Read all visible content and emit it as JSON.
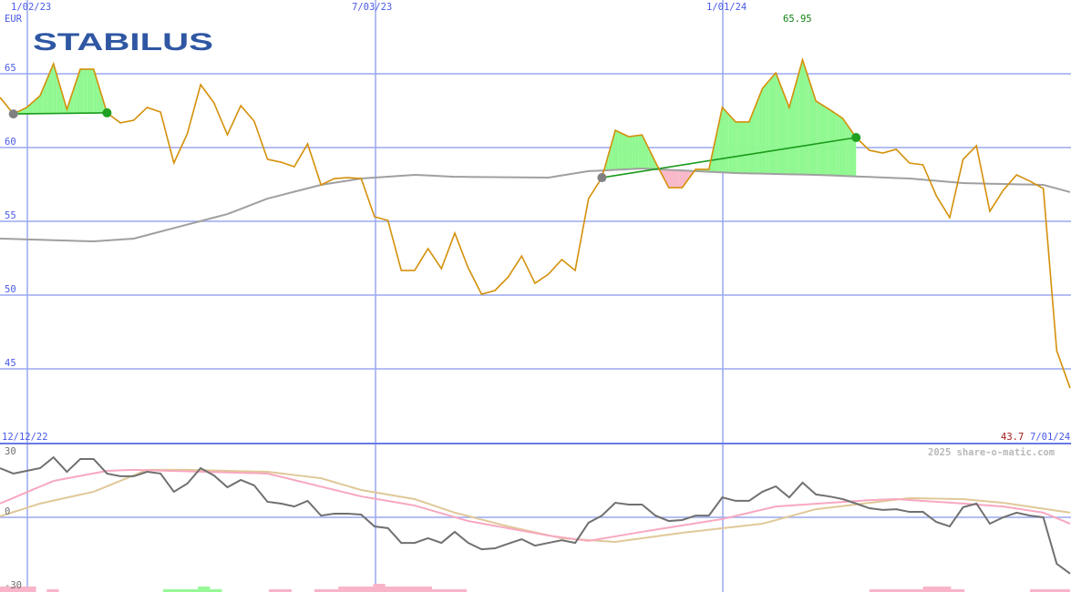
{
  "chart_data": [
    {
      "type": "line",
      "logo_text": "STABILUS",
      "unit_label": "EUR",
      "x_tick_labels": [
        "1/02/23",
        "7/03/23",
        "1/01/24"
      ],
      "y_tick_labels": [
        "65",
        "60",
        "55",
        "50",
        "45"
      ],
      "y_ticks": [
        65,
        60,
        55,
        50,
        45
      ],
      "ylim": [
        42.5,
        70
      ],
      "frequency": "weekly",
      "x_range": [
        "2022-12-19",
        "2024-07-01"
      ],
      "grid": true,
      "max_label": "65.95",
      "last_label": "43.7",
      "start_date_label": "12/12/22",
      "end_date_label": "7/01/24",
      "colors": {
        "price": "#d4900a",
        "moving_average": "#a0a0a0",
        "gain_fill": "#90f890",
        "loss_fill": "#f8b8c8",
        "trend_line": "#1a9a1a",
        "grid": "#9aa8f0",
        "label": "#4a5ae8",
        "max_label": "#108010",
        "last_label": "#a01818"
      },
      "price": [
        63.4,
        62.28,
        62.72,
        63.52,
        65.68,
        62.59,
        65.31,
        65.31,
        62.35,
        61.67,
        61.85,
        62.72,
        62.41,
        58.95,
        60.93,
        64.26,
        63.02,
        60.86,
        62.84,
        61.79,
        59.2,
        59.01,
        58.7,
        60.25,
        57.47,
        57.9,
        57.96,
        57.9,
        55.31,
        55.06,
        51.67,
        51.67,
        53.15,
        51.79,
        54.2,
        51.85,
        50.06,
        50.31,
        51.23,
        52.65,
        50.8,
        51.42,
        52.41,
        51.67,
        56.54,
        57.96,
        61.17,
        60.74,
        60.86,
        59.01,
        57.28,
        57.28,
        58.52,
        58.52,
        62.72,
        61.73,
        61.73,
        64.01,
        65.06,
        62.72,
        65.95,
        63.15,
        62.59,
        61.98,
        60.68,
        59.81,
        59.63,
        59.88,
        58.95,
        58.83,
        56.73,
        55.25,
        59.2,
        60.12,
        55.68,
        57.1,
        58.15,
        57.72,
        57.22,
        46.23,
        43.7
      ],
      "moving_average": [
        [
          0,
          53.83
        ],
        [
          7,
          53.64
        ],
        [
          10,
          53.83
        ],
        [
          17,
          55.49
        ],
        [
          20,
          56.54
        ],
        [
          24,
          57.47
        ],
        [
          27,
          57.9
        ],
        [
          31,
          58.15
        ],
        [
          34,
          58.02
        ],
        [
          41,
          57.96
        ],
        [
          44,
          58.4
        ],
        [
          48,
          58.58
        ],
        [
          55,
          58.27
        ],
        [
          61,
          58.15
        ],
        [
          68,
          57.9
        ],
        [
          72,
          57.59
        ],
        [
          78,
          57.47
        ],
        [
          80,
          56.98
        ]
      ],
      "trend_segments": [
        {
          "from_week": 1,
          "to_week": 8,
          "baseline": "trend"
        },
        {
          "from_week": 45,
          "to_week": 64,
          "baseline": "moving_average"
        }
      ]
    },
    {
      "type": "line",
      "y_tick_labels": [
        "30",
        "0",
        "-30"
      ],
      "ylim": [
        -30,
        30
      ],
      "watermark": "2025 share-o-matic.com",
      "colors": {
        "oscillator": "#707070",
        "fast_average": "#f8a8c0",
        "slow_average": "#e0c898"
      },
      "oscillator": [
        20.0,
        17.8,
        18.9,
        20.0,
        24.4,
        18.5,
        23.7,
        23.7,
        17.8,
        16.7,
        16.7,
        18.5,
        17.8,
        10.4,
        13.7,
        20.0,
        17.0,
        12.2,
        15.2,
        13.0,
        6.3,
        5.6,
        4.4,
        6.7,
        0.7,
        1.5,
        1.5,
        1.1,
        -3.7,
        -4.4,
        -10.4,
        -10.4,
        -8.5,
        -10.4,
        -5.9,
        -10.4,
        -13.0,
        -12.6,
        -10.7,
        -8.9,
        -11.5,
        -10.4,
        -9.3,
        -10.4,
        -2.2,
        0.7,
        5.9,
        5.2,
        5.2,
        0.7,
        -1.5,
        -1.1,
        0.7,
        0.7,
        8.1,
        6.7,
        6.7,
        10.4,
        12.6,
        8.1,
        14.1,
        9.3,
        8.5,
        7.4,
        5.6,
        3.7,
        3.0,
        3.3,
        2.2,
        2.2,
        -1.9,
        -3.7,
        4.1,
        5.6,
        -2.6,
        0.0,
        1.9,
        0.7,
        0.0,
        -18.9,
        -22.9
      ],
      "fast_average": [
        [
          0,
          5.6
        ],
        [
          4,
          14.8
        ],
        [
          8,
          18.9
        ],
        [
          10,
          19.3
        ],
        [
          20,
          17.8
        ],
        [
          27,
          8.5
        ],
        [
          31,
          4.8
        ],
        [
          35,
          -1.5
        ],
        [
          41,
          -7.4
        ],
        [
          44,
          -9.6
        ],
        [
          48,
          -5.9
        ],
        [
          54,
          -0.7
        ],
        [
          58,
          4.4
        ],
        [
          65,
          7.0
        ],
        [
          67,
          7.4
        ],
        [
          72,
          5.6
        ],
        [
          75,
          4.4
        ],
        [
          78,
          1.9
        ],
        [
          80,
          -2.6
        ]
      ],
      "slow_average": [
        [
          0,
          0.4
        ],
        [
          3,
          5.6
        ],
        [
          7,
          10.4
        ],
        [
          11,
          19.3
        ],
        [
          14,
          19.3
        ],
        [
          20,
          18.5
        ],
        [
          24,
          15.9
        ],
        [
          27,
          11.1
        ],
        [
          31,
          7.4
        ],
        [
          34,
          1.9
        ],
        [
          38,
          -3.7
        ],
        [
          42,
          -8.5
        ],
        [
          46,
          -10.0
        ],
        [
          51,
          -6.3
        ],
        [
          57,
          -2.6
        ],
        [
          61,
          3.3
        ],
        [
          65,
          5.9
        ],
        [
          68,
          7.8
        ],
        [
          72,
          7.4
        ],
        [
          75,
          5.9
        ],
        [
          80,
          1.9
        ]
      ],
      "signal_bars": [
        {
          "from_week": 0,
          "to_week": 2.7,
          "type": "sell",
          "strength": 2
        },
        {
          "from_week": 3.5,
          "to_week": 4.4,
          "type": "sell",
          "strength": 1
        },
        {
          "from_week": 12.2,
          "to_week": 16.6,
          "type": "buy",
          "strength": 1
        },
        {
          "from_week": 14.8,
          "to_week": 15.7,
          "type": "buy",
          "strength": 2
        },
        {
          "from_week": 20.1,
          "to_week": 21.8,
          "type": "sell",
          "strength": 1
        },
        {
          "from_week": 23.5,
          "to_week": 34.9,
          "type": "sell",
          "strength": 1
        },
        {
          "from_week": 25.3,
          "to_week": 32.3,
          "type": "sell",
          "strength": 2
        },
        {
          "from_week": 27.9,
          "to_week": 28.8,
          "type": "sell",
          "strength": 3
        },
        {
          "from_week": 65,
          "to_week": 72.1,
          "type": "sell",
          "strength": 1
        },
        {
          "from_week": 69,
          "to_week": 71.1,
          "type": "sell",
          "strength": 2
        },
        {
          "from_week": 77,
          "to_week": 80,
          "type": "sell",
          "strength": 1
        }
      ]
    }
  ]
}
